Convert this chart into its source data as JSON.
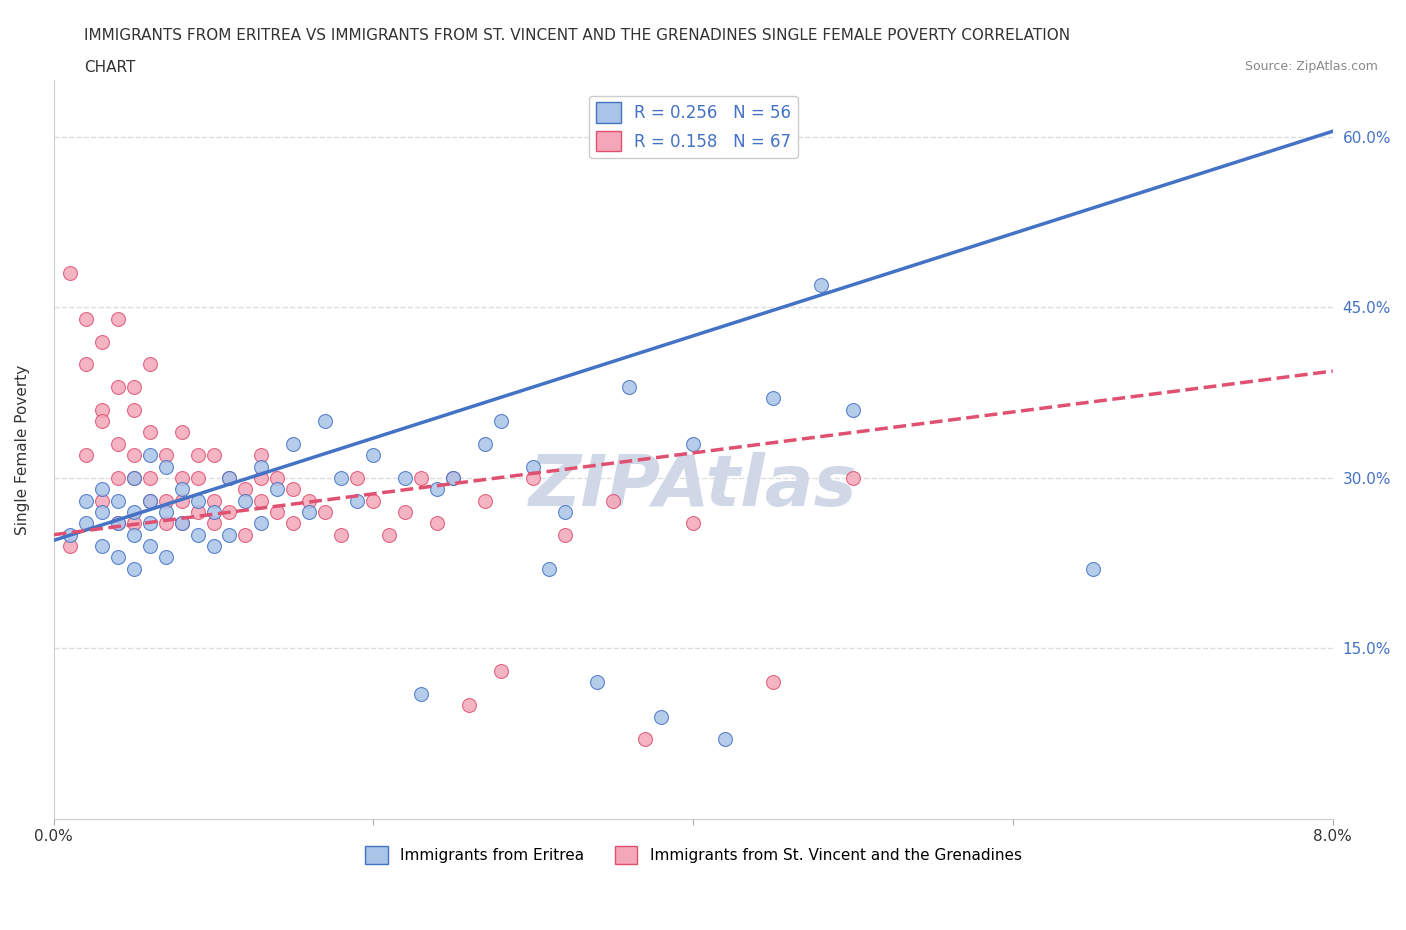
{
  "title_line1": "IMMIGRANTS FROM ERITREA VS IMMIGRANTS FROM ST. VINCENT AND THE GRENADINES SINGLE FEMALE POVERTY CORRELATION",
  "title_line2": "CHART",
  "source_text": "Source: ZipAtlas.com",
  "ylabel": "Single Female Poverty",
  "x_min": 0.0,
  "x_max": 0.08,
  "y_min": 0.0,
  "y_max": 0.65,
  "x_ticks": [
    0.0,
    0.02,
    0.04,
    0.06,
    0.08
  ],
  "y_ticks": [
    0.0,
    0.15,
    0.3,
    0.45,
    0.6
  ],
  "legend_entries": [
    {
      "label": "R = 0.256   N = 56",
      "color": "#aac4e8"
    },
    {
      "label": "R = 0.158   N = 67",
      "color": "#f4a7b9"
    }
  ],
  "series": [
    {
      "name": "Immigrants from Eritrea",
      "color": "#aac4e8",
      "edge_color": "#4472c4",
      "slope": 4.5,
      "intercept": 0.245,
      "line_color": "#4472c4",
      "line_style": "solid",
      "points_x": [
        0.001,
        0.002,
        0.002,
        0.003,
        0.003,
        0.003,
        0.004,
        0.004,
        0.004,
        0.005,
        0.005,
        0.005,
        0.005,
        0.006,
        0.006,
        0.006,
        0.006,
        0.007,
        0.007,
        0.007,
        0.008,
        0.008,
        0.009,
        0.009,
        0.01,
        0.01,
        0.011,
        0.011,
        0.012,
        0.013,
        0.013,
        0.014,
        0.015,
        0.016,
        0.017,
        0.018,
        0.019,
        0.02,
        0.022,
        0.023,
        0.024,
        0.025,
        0.027,
        0.028,
        0.03,
        0.031,
        0.032,
        0.034,
        0.036,
        0.038,
        0.04,
        0.042,
        0.045,
        0.048,
        0.05,
        0.065
      ],
      "points_y": [
        0.25,
        0.26,
        0.28,
        0.24,
        0.27,
        0.29,
        0.23,
        0.26,
        0.28,
        0.22,
        0.25,
        0.27,
        0.3,
        0.24,
        0.26,
        0.28,
        0.32,
        0.23,
        0.27,
        0.31,
        0.26,
        0.29,
        0.25,
        0.28,
        0.24,
        0.27,
        0.25,
        0.3,
        0.28,
        0.26,
        0.31,
        0.29,
        0.33,
        0.27,
        0.35,
        0.3,
        0.28,
        0.32,
        0.3,
        0.11,
        0.29,
        0.3,
        0.33,
        0.35,
        0.31,
        0.22,
        0.27,
        0.12,
        0.38,
        0.09,
        0.33,
        0.07,
        0.37,
        0.47,
        0.36,
        0.22
      ]
    },
    {
      "name": "Immigrants from St. Vincent and the Grenadines",
      "color": "#f4a7b9",
      "edge_color": "#e05070",
      "slope": 1.8,
      "intercept": 0.25,
      "line_color": "#e05070",
      "line_style": "dashed",
      "points_x": [
        0.001,
        0.001,
        0.002,
        0.002,
        0.002,
        0.003,
        0.003,
        0.003,
        0.003,
        0.004,
        0.004,
        0.004,
        0.004,
        0.004,
        0.005,
        0.005,
        0.005,
        0.005,
        0.005,
        0.006,
        0.006,
        0.006,
        0.006,
        0.007,
        0.007,
        0.007,
        0.008,
        0.008,
        0.008,
        0.008,
        0.009,
        0.009,
        0.009,
        0.01,
        0.01,
        0.01,
        0.011,
        0.011,
        0.012,
        0.012,
        0.013,
        0.013,
        0.013,
        0.014,
        0.014,
        0.015,
        0.015,
        0.016,
        0.017,
        0.018,
        0.019,
        0.02,
        0.021,
        0.022,
        0.023,
        0.024,
        0.025,
        0.026,
        0.027,
        0.028,
        0.03,
        0.032,
        0.035,
        0.037,
        0.04,
        0.045,
        0.05
      ],
      "points_y": [
        0.48,
        0.24,
        0.44,
        0.32,
        0.4,
        0.36,
        0.28,
        0.35,
        0.42,
        0.33,
        0.38,
        0.26,
        0.3,
        0.44,
        0.38,
        0.32,
        0.26,
        0.3,
        0.36,
        0.3,
        0.34,
        0.28,
        0.4,
        0.32,
        0.28,
        0.26,
        0.3,
        0.34,
        0.28,
        0.26,
        0.32,
        0.3,
        0.27,
        0.28,
        0.32,
        0.26,
        0.3,
        0.27,
        0.29,
        0.25,
        0.3,
        0.28,
        0.32,
        0.27,
        0.3,
        0.26,
        0.29,
        0.28,
        0.27,
        0.25,
        0.3,
        0.28,
        0.25,
        0.27,
        0.3,
        0.26,
        0.3,
        0.1,
        0.28,
        0.13,
        0.3,
        0.25,
        0.28,
        0.07,
        0.26,
        0.12,
        0.3
      ]
    }
  ],
  "watermark": "ZIPAtlas",
  "watermark_color": "#d0d8e8",
  "background_color": "#ffffff",
  "grid_color": "#dddddd",
  "title_fontsize": 11,
  "axis_label_fontsize": 11,
  "tick_fontsize": 11,
  "legend_fontsize": 12,
  "marker_size": 10
}
